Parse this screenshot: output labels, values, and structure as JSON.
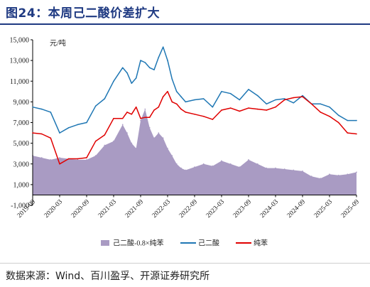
{
  "header": {
    "title": "图24：本周己二酸价差扩大"
  },
  "footer": {
    "source": "数据来源：Wind、百川盈孚、开源证券研究所"
  },
  "chart_data": {
    "type": "line",
    "unit_label": "元/吨",
    "ylim": [
      -1000,
      15000
    ],
    "y_ticks": [
      -1000,
      1000,
      3000,
      5000,
      7000,
      9000,
      11000,
      13000,
      15000
    ],
    "y_tick_labels": [
      "-1,000",
      "1,000",
      "3,000",
      "5,000",
      "7,000",
      "9,000",
      "11,000",
      "13,000",
      "15,000"
    ],
    "x_ticks": [
      "2019-09",
      "2020-03",
      "2020-09",
      "2021-03",
      "2021-09",
      "2022-03",
      "2022-09",
      "2023-03",
      "2023-09",
      "2024-03",
      "2024-09",
      "2025-03",
      "2025-09"
    ],
    "grid": false,
    "legend_position": "bottom",
    "colors": {
      "spread": "#a99bc3",
      "adipic_acid": "#1f77b4",
      "benzene": "#e00000"
    },
    "series": [
      {
        "name": "己二酸-0.8×纯苯",
        "kind": "area",
        "x": [
          "2019-09",
          "2019-11",
          "2020-01",
          "2020-03",
          "2020-05",
          "2020-07",
          "2020-09",
          "2020-11",
          "2021-01",
          "2021-03",
          "2021-05",
          "2021-06",
          "2021-07",
          "2021-08",
          "2021-09",
          "2021-10",
          "2021-11",
          "2021-12",
          "2022-01",
          "2022-02",
          "2022-03",
          "2022-04",
          "2022-05",
          "2022-06",
          "2022-07",
          "2022-09",
          "2022-11",
          "2023-01",
          "2023-03",
          "2023-05",
          "2023-07",
          "2023-09",
          "2023-11",
          "2024-01",
          "2024-03",
          "2024-05",
          "2024-07",
          "2024-09",
          "2024-11",
          "2025-01",
          "2025-03",
          "2025-05",
          "2025-07",
          "2025-09"
        ],
        "values": [
          3800,
          3600,
          3400,
          3600,
          3500,
          3400,
          3400,
          3800,
          4800,
          5200,
          6800,
          6000,
          5000,
          4500,
          7200,
          8300,
          6500,
          5500,
          6000,
          5500,
          4500,
          3800,
          3000,
          2600,
          2400,
          2700,
          3000,
          2800,
          3300,
          3000,
          2700,
          3400,
          3000,
          2600,
          2600,
          2500,
          2400,
          2300,
          1800,
          1600,
          2000,
          1900,
          2000,
          2200
        ]
      },
      {
        "name": "己二酸",
        "kind": "line",
        "x": [
          "2019-09",
          "2019-11",
          "2020-01",
          "2020-03",
          "2020-05",
          "2020-07",
          "2020-09",
          "2020-11",
          "2021-01",
          "2021-03",
          "2021-05",
          "2021-06",
          "2021-07",
          "2021-08",
          "2021-09",
          "2021-10",
          "2021-11",
          "2021-12",
          "2022-01",
          "2022-02",
          "2022-03",
          "2022-04",
          "2022-05",
          "2022-06",
          "2022-07",
          "2022-09",
          "2022-11",
          "2023-01",
          "2023-03",
          "2023-05",
          "2023-07",
          "2023-09",
          "2023-11",
          "2024-01",
          "2024-03",
          "2024-05",
          "2024-07",
          "2024-09",
          "2024-11",
          "2025-01",
          "2025-03",
          "2025-05",
          "2025-07",
          "2025-09"
        ],
        "values": [
          8500,
          8300,
          8000,
          6000,
          6500,
          6800,
          7000,
          8600,
          9300,
          11000,
          12300,
          11800,
          10800,
          11300,
          13000,
          12800,
          12300,
          12100,
          13300,
          14300,
          13000,
          11200,
          10000,
          9500,
          9000,
          9200,
          9300,
          8500,
          10000,
          9800,
          9200,
          10200,
          9600,
          8800,
          9200,
          9300,
          8900,
          9600,
          8800,
          8800,
          8500,
          7700,
          7200,
          7200
        ]
      },
      {
        "name": "纯苯",
        "kind": "line",
        "x": [
          "2019-09",
          "2019-11",
          "2020-01",
          "2020-03",
          "2020-05",
          "2020-07",
          "2020-09",
          "2020-11",
          "2021-01",
          "2021-03",
          "2021-05",
          "2021-06",
          "2021-07",
          "2021-08",
          "2021-09",
          "2021-10",
          "2021-11",
          "2021-12",
          "2022-01",
          "2022-02",
          "2022-03",
          "2022-04",
          "2022-05",
          "2022-06",
          "2022-07",
          "2022-09",
          "2022-11",
          "2023-01",
          "2023-03",
          "2023-05",
          "2023-07",
          "2023-09",
          "2023-11",
          "2024-01",
          "2024-03",
          "2024-05",
          "2024-07",
          "2024-09",
          "2024-11",
          "2025-01",
          "2025-03",
          "2025-05",
          "2025-07",
          "2025-09"
        ],
        "values": [
          6000,
          5900,
          5500,
          3000,
          3500,
          3500,
          3600,
          5200,
          5800,
          7400,
          7400,
          8000,
          7800,
          8500,
          7400,
          7500,
          7500,
          8200,
          8500,
          9500,
          10000,
          9000,
          8800,
          8300,
          8000,
          7800,
          7600,
          7300,
          8200,
          8400,
          8100,
          8400,
          8300,
          8200,
          8500,
          9200,
          9400,
          9500,
          8800,
          8000,
          7600,
          7000,
          6000,
          5900
        ]
      }
    ]
  }
}
